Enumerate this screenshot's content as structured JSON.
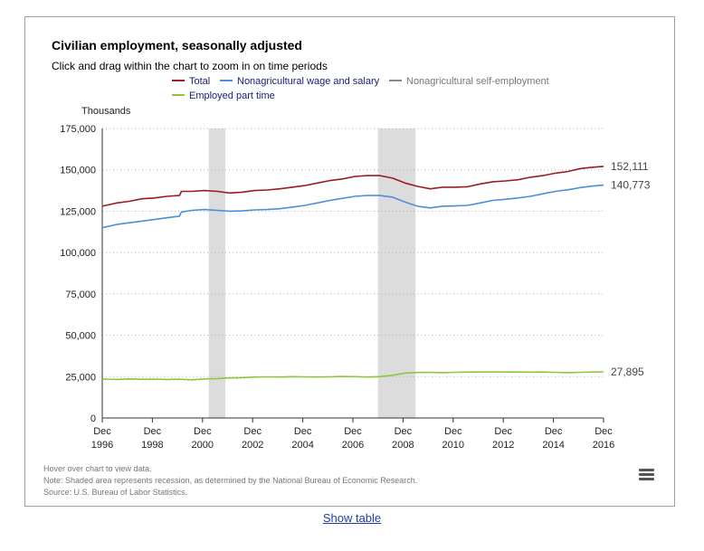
{
  "chart_data": {
    "type": "line",
    "title": "Civilian employment, seasonally adjusted",
    "subtitle": "Click and drag within the chart to zoom in on time periods",
    "ylabel": "Thousands",
    "ylim": [
      0,
      175000
    ],
    "yticks": [
      "0",
      "25,000",
      "50,000",
      "75,000",
      "100,000",
      "125,000",
      "150,000",
      "175,000"
    ],
    "ytick_values": [
      0,
      25000,
      50000,
      75000,
      100000,
      125000,
      150000,
      175000
    ],
    "xlim": [
      1996.92,
      2016.92
    ],
    "xticks": [
      {
        "x": 1996.92,
        "top": "Dec",
        "bottom": "1996"
      },
      {
        "x": 1998.92,
        "top": "Dec",
        "bottom": "1998"
      },
      {
        "x": 2000.92,
        "top": "Dec",
        "bottom": "2000"
      },
      {
        "x": 2002.92,
        "top": "Dec",
        "bottom": "2002"
      },
      {
        "x": 2004.92,
        "top": "Dec",
        "bottom": "2004"
      },
      {
        "x": 2006.92,
        "top": "Dec",
        "bottom": "2006"
      },
      {
        "x": 2008.92,
        "top": "Dec",
        "bottom": "2008"
      },
      {
        "x": 2010.92,
        "top": "Dec",
        "bottom": "2010"
      },
      {
        "x": 2012.92,
        "top": "Dec",
        "bottom": "2012"
      },
      {
        "x": 2014.92,
        "top": "Dec",
        "bottom": "2014"
      },
      {
        "x": 2016.92,
        "top": "Dec",
        "bottom": "2016"
      }
    ],
    "grid": "horizontal dotted",
    "recessions": [
      {
        "start": 2001.17,
        "end": 2001.83
      },
      {
        "start": 2007.92,
        "end": 2009.42
      }
    ],
    "series": [
      {
        "name": "Total",
        "color": "#9b1c1f",
        "end_label": "152,111",
        "points": [
          [
            1996.92,
            128000
          ],
          [
            1997.5,
            130000
          ],
          [
            1998.0,
            131000
          ],
          [
            1998.5,
            132500
          ],
          [
            1999.0,
            133000
          ],
          [
            1999.5,
            134000
          ],
          [
            2000.0,
            134500
          ],
          [
            2000.08,
            137000
          ],
          [
            2000.5,
            137000
          ],
          [
            2001.0,
            137500
          ],
          [
            2001.5,
            137000
          ],
          [
            2002.0,
            136000
          ],
          [
            2002.5,
            136500
          ],
          [
            2003.0,
            137500
          ],
          [
            2003.5,
            137800
          ],
          [
            2004.0,
            138500
          ],
          [
            2004.5,
            139500
          ],
          [
            2005.0,
            140500
          ],
          [
            2005.5,
            142000
          ],
          [
            2006.0,
            143500
          ],
          [
            2006.5,
            144500
          ],
          [
            2007.0,
            146000
          ],
          [
            2007.5,
            146500
          ],
          [
            2008.0,
            146500
          ],
          [
            2008.5,
            145000
          ],
          [
            2009.0,
            142000
          ],
          [
            2009.5,
            140000
          ],
          [
            2010.0,
            138500
          ],
          [
            2010.5,
            139500
          ],
          [
            2011.0,
            139500
          ],
          [
            2011.5,
            139800
          ],
          [
            2012.0,
            141500
          ],
          [
            2012.5,
            142800
          ],
          [
            2013.0,
            143300
          ],
          [
            2013.5,
            144000
          ],
          [
            2014.0,
            145500
          ],
          [
            2014.5,
            146500
          ],
          [
            2015.0,
            148000
          ],
          [
            2015.5,
            149000
          ],
          [
            2016.0,
            150800
          ],
          [
            2016.5,
            151600
          ],
          [
            2016.92,
            152111
          ]
        ]
      },
      {
        "name": "Nonagricultural wage and salary",
        "color": "#4a90d9",
        "end_label": "140,773",
        "points": [
          [
            1996.92,
            115000
          ],
          [
            1997.5,
            117000
          ],
          [
            1998.0,
            118000
          ],
          [
            1998.5,
            119000
          ],
          [
            1999.0,
            120000
          ],
          [
            1999.5,
            121000
          ],
          [
            2000.0,
            122000
          ],
          [
            2000.08,
            124500
          ],
          [
            2000.5,
            125500
          ],
          [
            2001.0,
            126000
          ],
          [
            2001.5,
            125500
          ],
          [
            2002.0,
            125000
          ],
          [
            2002.5,
            125200
          ],
          [
            2003.0,
            125800
          ],
          [
            2003.5,
            126000
          ],
          [
            2004.0,
            126500
          ],
          [
            2004.5,
            127500
          ],
          [
            2005.0,
            128500
          ],
          [
            2005.5,
            130000
          ],
          [
            2006.0,
            131500
          ],
          [
            2006.5,
            132800
          ],
          [
            2007.0,
            134000
          ],
          [
            2007.5,
            134500
          ],
          [
            2008.0,
            134500
          ],
          [
            2008.5,
            133500
          ],
          [
            2009.0,
            130500
          ],
          [
            2009.5,
            128000
          ],
          [
            2010.0,
            127000
          ],
          [
            2010.5,
            128000
          ],
          [
            2011.0,
            128200
          ],
          [
            2011.5,
            128500
          ],
          [
            2012.0,
            130000
          ],
          [
            2012.5,
            131500
          ],
          [
            2013.0,
            132200
          ],
          [
            2013.5,
            133000
          ],
          [
            2014.0,
            134000
          ],
          [
            2014.5,
            135500
          ],
          [
            2015.0,
            137000
          ],
          [
            2015.5,
            138000
          ],
          [
            2016.0,
            139300
          ],
          [
            2016.5,
            140200
          ],
          [
            2016.92,
            140773
          ]
        ]
      },
      {
        "name": "Nonagricultural self-employment",
        "color": "#888888",
        "end_label": "",
        "points": []
      },
      {
        "name": "Employed part time",
        "color": "#8dc63f",
        "end_label": "27,895",
        "points": [
          [
            1996.92,
            23500
          ],
          [
            1997.5,
            23300
          ],
          [
            1998.0,
            23600
          ],
          [
            1998.5,
            23400
          ],
          [
            1999.0,
            23500
          ],
          [
            1999.5,
            23300
          ],
          [
            2000.0,
            23400
          ],
          [
            2000.5,
            23100
          ],
          [
            2001.0,
            23600
          ],
          [
            2001.5,
            23800
          ],
          [
            2002.0,
            24200
          ],
          [
            2002.5,
            24400
          ],
          [
            2003.0,
            24700
          ],
          [
            2003.5,
            24900
          ],
          [
            2004.0,
            24800
          ],
          [
            2004.5,
            25000
          ],
          [
            2005.0,
            24900
          ],
          [
            2005.5,
            24800
          ],
          [
            2006.0,
            24900
          ],
          [
            2006.5,
            25100
          ],
          [
            2007.0,
            25000
          ],
          [
            2007.5,
            24800
          ],
          [
            2008.0,
            25000
          ],
          [
            2008.5,
            25800
          ],
          [
            2009.0,
            27200
          ],
          [
            2009.5,
            27500
          ],
          [
            2010.0,
            27600
          ],
          [
            2010.5,
            27400
          ],
          [
            2011.0,
            27600
          ],
          [
            2011.5,
            27800
          ],
          [
            2012.0,
            27800
          ],
          [
            2012.5,
            27900
          ],
          [
            2013.0,
            27800
          ],
          [
            2013.5,
            27800
          ],
          [
            2014.0,
            27700
          ],
          [
            2014.5,
            27800
          ],
          [
            2015.0,
            27600
          ],
          [
            2015.5,
            27400
          ],
          [
            2016.0,
            27600
          ],
          [
            2016.5,
            27800
          ],
          [
            2016.92,
            27895
          ]
        ]
      }
    ]
  },
  "notes": {
    "hover": "Hover over chart to view data.",
    "note": "Note: Shaded area represents recession, as determined by the National Bureau of Economic Research.",
    "source": "Source: U.S. Bureau of Labor Statistics."
  },
  "menu": {
    "icon": "hamburger-menu-icon"
  },
  "show_table": "Show table"
}
